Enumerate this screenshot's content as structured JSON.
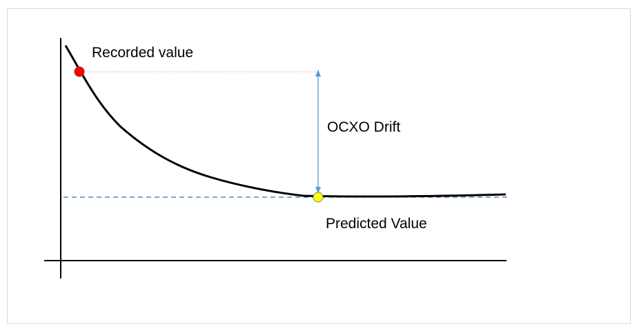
{
  "labels": {
    "recorded": "Recorded value",
    "drift": "OCXO Drift",
    "predicted": "Predicted Value"
  },
  "colors": {
    "curve": "#000000",
    "axis": "#000000",
    "recorded_point": "#ff0000",
    "predicted_point": "#ffff00",
    "drift_arrow": "#5b9bd5",
    "baseline_dashed": "#2e75b6",
    "guide_line": "#bfbfbf",
    "frame_border": "#d9d9d9"
  }
}
